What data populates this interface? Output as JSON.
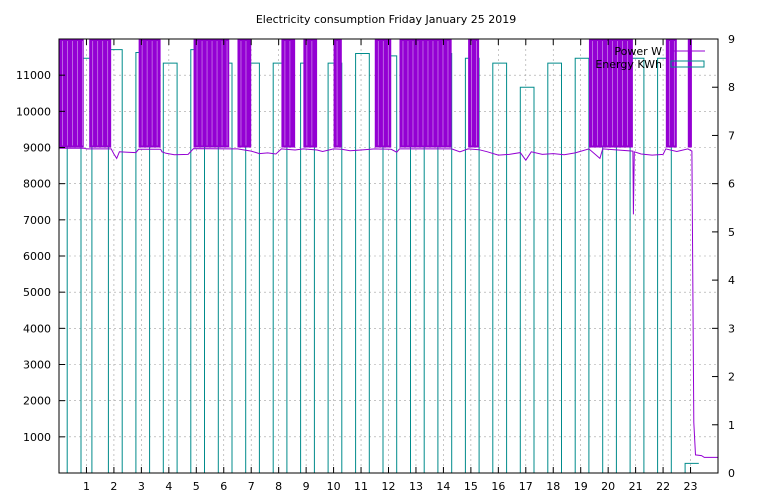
{
  "chart_data": {
    "type": "line",
    "title": "Electricity consumption Friday January 25 2019",
    "xlabel": "",
    "ylabel": "",
    "y2label": "",
    "xlim": [
      0,
      24
    ],
    "ylim": [
      0,
      12000
    ],
    "y2lim": [
      0,
      9
    ],
    "xticks": [
      1,
      2,
      3,
      4,
      5,
      6,
      7,
      8,
      9,
      10,
      11,
      12,
      13,
      14,
      15,
      16,
      17,
      18,
      19,
      20,
      21,
      22,
      23
    ],
    "yticks": [
      1000,
      2000,
      3000,
      4000,
      5000,
      6000,
      7000,
      8000,
      9000,
      10000,
      11000
    ],
    "y2ticks": [
      0,
      1,
      2,
      3,
      4,
      5,
      6,
      7,
      8,
      9
    ],
    "grid": true,
    "legend_position": "top-right",
    "series": [
      {
        "name": "Power W",
        "axis": "y1",
        "color": "#9400d3",
        "spike_intervals": [
          [
            0.0,
            0.9
          ],
          [
            1.1,
            1.9
          ],
          [
            2.9,
            3.7
          ],
          [
            4.9,
            6.2
          ],
          [
            6.5,
            7.0
          ],
          [
            8.1,
            8.6
          ],
          [
            8.9,
            9.4
          ],
          [
            10.0,
            10.3
          ],
          [
            11.5,
            12.1
          ],
          [
            12.4,
            14.3
          ],
          [
            14.9,
            15.3
          ],
          [
            19.3,
            20.9
          ],
          [
            22.1,
            22.5
          ],
          [
            22.9,
            23.05
          ]
        ],
        "points": [
          [
            0.0,
            8980
          ],
          [
            0.9,
            8980
          ],
          [
            1.0,
            8960
          ],
          [
            1.9,
            8960
          ],
          [
            2.0,
            8820
          ],
          [
            2.1,
            8700
          ],
          [
            2.2,
            8880
          ],
          [
            2.5,
            8870
          ],
          [
            2.8,
            8860
          ],
          [
            2.9,
            8950
          ],
          [
            3.7,
            8950
          ],
          [
            3.75,
            8880
          ],
          [
            3.9,
            8840
          ],
          [
            4.2,
            8800
          ],
          [
            4.7,
            8810
          ],
          [
            4.9,
            8970
          ],
          [
            6.2,
            8960
          ],
          [
            6.5,
            8960
          ],
          [
            7.0,
            8900
          ],
          [
            7.3,
            8830
          ],
          [
            7.6,
            8850
          ],
          [
            7.9,
            8820
          ],
          [
            8.1,
            8960
          ],
          [
            8.6,
            8930
          ],
          [
            8.9,
            8960
          ],
          [
            9.4,
            8930
          ],
          [
            9.6,
            8890
          ],
          [
            10.0,
            8960
          ],
          [
            10.3,
            8950
          ],
          [
            10.6,
            8910
          ],
          [
            11.0,
            8930
          ],
          [
            11.5,
            8960
          ],
          [
            12.1,
            8950
          ],
          [
            12.3,
            8870
          ],
          [
            12.4,
            8960
          ],
          [
            14.3,
            8960
          ],
          [
            14.6,
            8880
          ],
          [
            14.9,
            8960
          ],
          [
            15.3,
            8940
          ],
          [
            15.6,
            8880
          ],
          [
            16.0,
            8790
          ],
          [
            16.4,
            8810
          ],
          [
            16.8,
            8860
          ],
          [
            17.0,
            8650
          ],
          [
            17.2,
            8880
          ],
          [
            17.6,
            8810
          ],
          [
            18.0,
            8830
          ],
          [
            18.4,
            8800
          ],
          [
            18.8,
            8850
          ],
          [
            19.3,
            8960
          ],
          [
            19.7,
            8700
          ],
          [
            19.8,
            8960
          ],
          [
            20.9,
            8900
          ],
          [
            20.92,
            7150
          ],
          [
            20.95,
            8880
          ],
          [
            21.2,
            8820
          ],
          [
            21.6,
            8790
          ],
          [
            22.0,
            8810
          ],
          [
            22.1,
            8960
          ],
          [
            22.5,
            8890
          ],
          [
            22.9,
            8960
          ],
          [
            23.05,
            8900
          ],
          [
            23.12,
            1400
          ],
          [
            23.18,
            500
          ],
          [
            23.4,
            480
          ],
          [
            23.5,
            430
          ],
          [
            24.0,
            430
          ]
        ]
      },
      {
        "name": "Energy KWh",
        "axis": "y2",
        "color": "#008b8b",
        "bins": [
          [
            0.0,
            0.3,
            8.6
          ],
          [
            0.3,
            0.8,
            0
          ],
          [
            0.8,
            1.2,
            8.6
          ],
          [
            1.2,
            1.8,
            0
          ],
          [
            1.8,
            2.3,
            8.78
          ],
          [
            2.3,
            2.8,
            0
          ],
          [
            2.8,
            3.3,
            8.72
          ],
          [
            3.3,
            3.8,
            0
          ],
          [
            3.8,
            4.3,
            8.5
          ],
          [
            4.3,
            4.8,
            0
          ],
          [
            4.8,
            5.3,
            8.78
          ],
          [
            5.3,
            5.8,
            0
          ],
          [
            5.8,
            6.3,
            8.5
          ],
          [
            6.3,
            6.8,
            0
          ],
          [
            6.8,
            7.3,
            8.5
          ],
          [
            7.3,
            7.8,
            0
          ],
          [
            7.8,
            8.3,
            8.5
          ],
          [
            8.3,
            8.8,
            0
          ],
          [
            8.8,
            9.3,
            8.5
          ],
          [
            9.3,
            9.8,
            0
          ],
          [
            9.8,
            10.3,
            8.5
          ],
          [
            10.3,
            10.8,
            0
          ],
          [
            10.8,
            11.3,
            8.7
          ],
          [
            11.3,
            11.8,
            0
          ],
          [
            11.8,
            12.3,
            8.65
          ],
          [
            12.3,
            12.8,
            0
          ],
          [
            12.8,
            13.3,
            8.7
          ],
          [
            13.3,
            13.8,
            0
          ],
          [
            13.8,
            14.3,
            8.7
          ],
          [
            14.3,
            14.8,
            0
          ],
          [
            14.8,
            15.3,
            8.6
          ],
          [
            15.3,
            15.8,
            0
          ],
          [
            15.8,
            16.3,
            8.5
          ],
          [
            16.3,
            16.8,
            0
          ],
          [
            16.8,
            17.3,
            8.0
          ],
          [
            17.3,
            17.8,
            0
          ],
          [
            17.8,
            18.3,
            8.5
          ],
          [
            18.3,
            18.8,
            0
          ],
          [
            18.8,
            19.3,
            8.6
          ],
          [
            19.3,
            19.8,
            0
          ],
          [
            19.8,
            20.3,
            8.7
          ],
          [
            20.3,
            20.8,
            0
          ],
          [
            20.8,
            21.3,
            8.6
          ],
          [
            21.3,
            21.8,
            0
          ],
          [
            21.8,
            22.3,
            8.6
          ],
          [
            22.3,
            22.8,
            0
          ],
          [
            22.8,
            23.3,
            0.2
          ]
        ]
      }
    ]
  }
}
